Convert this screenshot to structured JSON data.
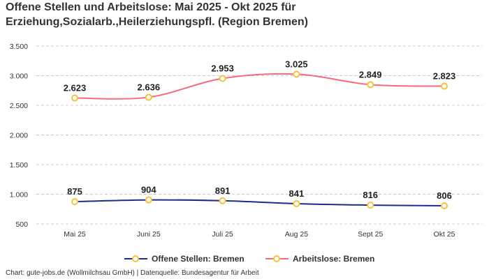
{
  "chart_data": {
    "type": "line",
    "title": "Offene Stellen und Arbeitslose: Mai 2025 - Okt 2025 für Erziehung,Sozialarb.,Heilerziehungspfl. (Region Bremen)",
    "categories": [
      "Mai 25",
      "Juni 25",
      "Juli 25",
      "Aug 25",
      "Sept 25",
      "Okt 25"
    ],
    "series": [
      {
        "name": "Offene Stellen: Bremen",
        "color": "#1f2d8a",
        "values": [
          875,
          904,
          891,
          841,
          816,
          806
        ],
        "labels": [
          "875",
          "904",
          "891",
          "841",
          "816",
          "806"
        ]
      },
      {
        "name": "Arbeitslose: Bremen",
        "color": "#f7697f",
        "values": [
          2623,
          2636,
          2953,
          3025,
          2849,
          2823
        ],
        "labels": [
          "2.623",
          "2.636",
          "2.953",
          "3.025",
          "2.849",
          "2.823"
        ]
      }
    ],
    "marker_color": "#f5c33b",
    "yticks": [
      500,
      1000,
      1500,
      2000,
      2500,
      3000,
      3500
    ],
    "ytick_labels": [
      "500",
      "1.000",
      "1.500",
      "2.000",
      "2.500",
      "3.000",
      "3.500"
    ],
    "ylim": [
      500,
      3500
    ],
    "grid": true,
    "legend": "bottom-center",
    "xlabel": "",
    "ylabel": ""
  },
  "credit": "Chart: gute-jobs.de (Wollmilchsau GmbH) | Datenquelle: Bundesagentur für Arbeit"
}
